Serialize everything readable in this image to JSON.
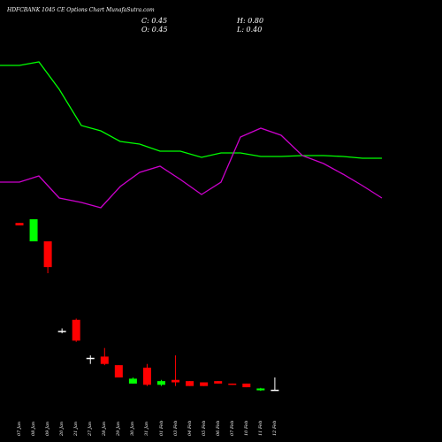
{
  "header": {
    "title": "HDFCBANK 1045 CE Options  Chart MunafaSutra.com",
    "c_label": "C: 0.45",
    "h_label": "H: 0.80",
    "o_label": "O: 0.45",
    "l_label": "L: 0.40"
  },
  "colors": {
    "up": "#00ff00",
    "down": "#ff0000",
    "doji": "#ffffff",
    "ma_fast": "#00ff00",
    "ma_slow": "#cc00cc",
    "background": "#000000"
  },
  "chart_data": {
    "type": "candlestick",
    "categories": [
      "07 Jan",
      "08 Jan",
      "09 Jan",
      "20 Jan",
      "21 Jan",
      "27 Jan",
      "28 Jan",
      "29 Jan",
      "30 Jan",
      "31 Jan",
      "01 Feb",
      "03 Feb",
      "04 Feb",
      "05 Feb",
      "06 Feb",
      "07 Feb",
      "10 Feb",
      "11 Feb",
      "12 Feb"
    ],
    "candles": [
      {
        "o": 14.4,
        "h": 14.4,
        "l": 14.2,
        "c": 14.2
      },
      {
        "o": 12.9,
        "h": 14.7,
        "l": 12.9,
        "c": 14.7
      },
      {
        "o": 12.9,
        "h": 12.9,
        "l": 10.3,
        "c": 10.8
      },
      {
        "o": 5.6,
        "h": 5.8,
        "l": 5.4,
        "c": 5.6
      },
      {
        "o": 6.5,
        "h": 6.6,
        "l": 4.7,
        "c": 4.8
      },
      {
        "o": 3.4,
        "h": 3.6,
        "l": 2.9,
        "c": 3.4
      },
      {
        "o": 3.5,
        "h": 4.2,
        "l": 2.8,
        "c": 2.9
      },
      {
        "o": 2.8,
        "h": 2.8,
        "l": 1.8,
        "c": 1.8
      },
      {
        "o": 1.3,
        "h": 1.8,
        "l": 1.3,
        "c": 1.7
      },
      {
        "o": 2.6,
        "h": 2.9,
        "l": 1.1,
        "c": 1.2
      },
      {
        "o": 1.2,
        "h": 1.6,
        "l": 1.1,
        "c": 1.5
      },
      {
        "o": 1.6,
        "h": 3.6,
        "l": 1.1,
        "c": 1.4
      },
      {
        "o": 1.5,
        "h": 1.5,
        "l": 1.1,
        "c": 1.1
      },
      {
        "o": 1.4,
        "h": 1.4,
        "l": 1.1,
        "c": 1.1
      },
      {
        "o": 1.5,
        "h": 1.5,
        "l": 1.3,
        "c": 1.3
      },
      {
        "o": 1.3,
        "h": 1.3,
        "l": 1.2,
        "c": 1.25
      },
      {
        "o": 1.3,
        "h": 1.3,
        "l": 1.0,
        "c": 1.0
      },
      {
        "o": 0.75,
        "h": 0.95,
        "l": 0.7,
        "c": 0.9
      },
      {
        "o": 0.8,
        "h": 1.8,
        "l": 0.75,
        "c": 0.8
      }
    ],
    "overlays": [
      {
        "color": "#00ff00",
        "points": [
          [
            0,
            74
          ],
          [
            22,
            74
          ],
          [
            44,
            70
          ],
          [
            67,
            101
          ],
          [
            92,
            142
          ],
          [
            114,
            148
          ],
          [
            136,
            160
          ],
          [
            158,
            163
          ],
          [
            181,
            171
          ],
          [
            204,
            171
          ],
          [
            228,
            178
          ],
          [
            250,
            173
          ],
          [
            272,
            173
          ],
          [
            295,
            177
          ],
          [
            318,
            177
          ],
          [
            342,
            176
          ],
          [
            366,
            176
          ],
          [
            388,
            177
          ],
          [
            410,
            179
          ],
          [
            432,
            179
          ]
        ]
      },
      {
        "color": "#cc00cc",
        "points": [
          [
            0,
            206
          ],
          [
            22,
            206
          ],
          [
            44,
            199
          ],
          [
            67,
            224
          ],
          [
            92,
            229
          ],
          [
            114,
            235
          ],
          [
            136,
            211
          ],
          [
            158,
            195
          ],
          [
            181,
            188
          ],
          [
            204,
            203
          ],
          [
            228,
            220
          ],
          [
            250,
            206
          ],
          [
            272,
            155
          ],
          [
            295,
            145
          ],
          [
            318,
            153
          ],
          [
            342,
            176
          ],
          [
            366,
            185
          ],
          [
            388,
            197
          ],
          [
            410,
            210
          ],
          [
            432,
            224
          ]
        ]
      }
    ]
  }
}
